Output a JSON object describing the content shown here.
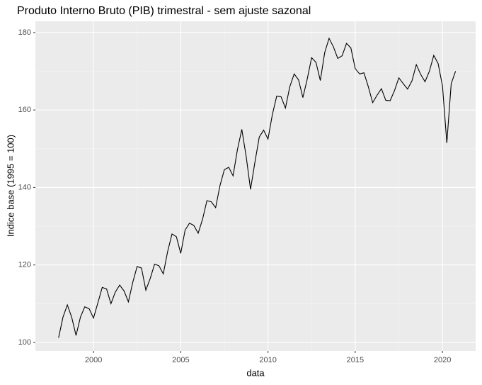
{
  "chart_data": {
    "type": "line",
    "title": "Produto Interno Bruto (PIB) trimestral - sem ajuste sazonal",
    "xlabel": "data",
    "ylabel": "Indice base (1995 = 100)",
    "color": "#000000",
    "grid": true,
    "x": [
      1998,
      1998.25,
      1998.5,
      1998.75,
      1999,
      1999.25,
      1999.5,
      1999.75,
      2000,
      2000.25,
      2000.5,
      2000.75,
      2001,
      2001.25,
      2001.5,
      2001.75,
      2002,
      2002.25,
      2002.5,
      2002.75,
      2003,
      2003.25,
      2003.5,
      2003.75,
      2004,
      2004.25,
      2004.5,
      2004.75,
      2005,
      2005.25,
      2005.5,
      2005.75,
      2006,
      2006.25,
      2006.5,
      2006.75,
      2007,
      2007.25,
      2007.5,
      2007.75,
      2008,
      2008.25,
      2008.5,
      2008.75,
      2009,
      2009.25,
      2009.5,
      2009.75,
      2010,
      2010.25,
      2010.5,
      2010.75,
      2011,
      2011.25,
      2011.5,
      2011.75,
      2012,
      2012.25,
      2012.5,
      2012.75,
      2013,
      2013.25,
      2013.5,
      2013.75,
      2014,
      2014.25,
      2014.5,
      2014.75,
      2015,
      2015.25,
      2015.5,
      2015.75,
      2016,
      2016.25,
      2016.5,
      2016.75,
      2017,
      2017.25,
      2017.5,
      2017.75,
      2018,
      2018.25,
      2018.5,
      2018.75,
      2019,
      2019.25,
      2019.5,
      2019.75,
      2020,
      2020.25,
      2020.5,
      2020.75
    ],
    "values": [
      101.2,
      106.5,
      109.7,
      106.5,
      101.8,
      106.5,
      109.2,
      108.7,
      106.3,
      110.2,
      114.2,
      113.8,
      110.0,
      113.0,
      114.8,
      113.3,
      110.5,
      115.5,
      119.6,
      119.2,
      113.5,
      116.5,
      120.2,
      119.8,
      117.7,
      123.5,
      128.0,
      127.3,
      123.0,
      129.0,
      130.8,
      130.2,
      128.2,
      131.8,
      136.6,
      136.3,
      134.8,
      140.5,
      144.6,
      145.2,
      143.0,
      149.8,
      155.0,
      148.0,
      139.5,
      146.5,
      153.0,
      154.8,
      152.5,
      158.8,
      163.6,
      163.4,
      160.5,
      166.0,
      169.3,
      167.8,
      163.2,
      168.0,
      173.5,
      172.3,
      167.6,
      174.8,
      178.5,
      176.3,
      173.3,
      174.0,
      177.2,
      176.0,
      170.7,
      169.3,
      169.6,
      166.0,
      161.9,
      163.8,
      165.5,
      162.5,
      162.4,
      165.0,
      168.3,
      166.8,
      165.4,
      167.5,
      171.7,
      169.2,
      167.3,
      170.0,
      174.1,
      172.0,
      166.2,
      151.5,
      166.8,
      170.0
    ],
    "xlim": [
      1996.67,
      2021.9
    ],
    "xticks": [
      2000,
      2005,
      2010,
      2015,
      2020
    ],
    "ylim": [
      97.8,
      182.9
    ],
    "yticks": [
      100,
      120,
      140,
      160,
      180
    ]
  }
}
